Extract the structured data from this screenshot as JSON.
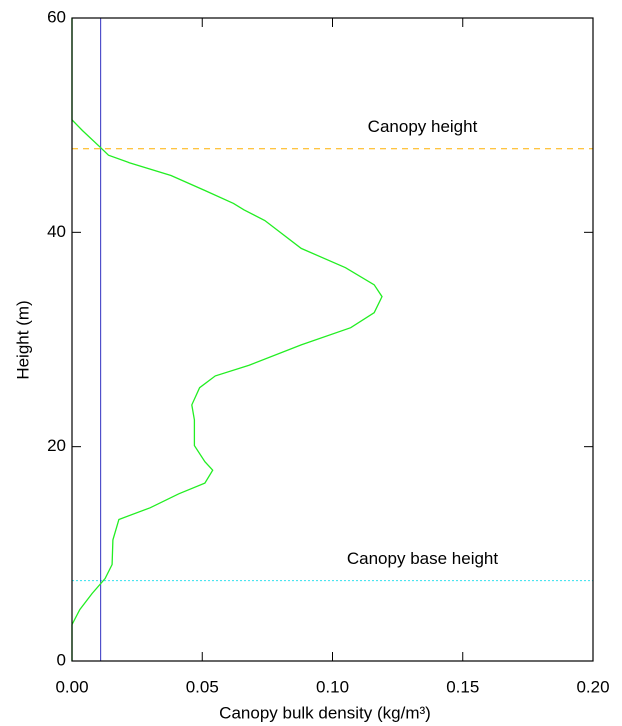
{
  "chart_data": {
    "type": "line",
    "xlabel": "Canopy bulk density (kg/m³)",
    "ylabel": "Height (m)",
    "xlim": [
      0,
      0.2
    ],
    "ylim": [
      0,
      60
    ],
    "xticks": [
      {
        "value": 0,
        "label": "0.00"
      },
      0.05,
      {
        "value": 0.1,
        "label": "0.10"
      },
      0.15,
      {
        "value": 0.2,
        "label": "0.20"
      }
    ],
    "yticks": [
      0,
      20,
      40,
      60
    ],
    "x": [
      0,
      0,
      0.003,
      0.0077,
      0.0127,
      0.0154,
      0.0157,
      0.018,
      0.03,
      0.041,
      0.051,
      0.054,
      0.051,
      0.047,
      0.047,
      0.046,
      0.049,
      0.055,
      0.068,
      0.088,
      0.107,
      0.116,
      0.119,
      0.116,
      0.105,
      0.088,
      0.074,
      0.066,
      0.062,
      0.051,
      0.038,
      0.022,
      0.014,
      0.011,
      0.004,
      0,
      0
    ],
    "series": [
      {
        "color": "#22ee22",
        "values": [
          0,
          3.4,
          4.8,
          6.3,
          7.7,
          9.0,
          11.3,
          13.2,
          14.3,
          15.6,
          16.6,
          17.8,
          18.6,
          20.1,
          22.5,
          23.9,
          25.5,
          26.6,
          27.6,
          29.5,
          31.1,
          32.5,
          34.0,
          35.1,
          36.7,
          38.5,
          41.1,
          42.1,
          42.7,
          43.9,
          45.3,
          46.5,
          47.2,
          47.9,
          49.5,
          50.5,
          60
        ]
      }
    ],
    "hlines": [
      {
        "y": 47.8,
        "label": "Canopy height",
        "color": "#ffb000",
        "dash": "6,5"
      },
      {
        "y": 7.5,
        "label": "Canopy base height",
        "color": "#33e0ee",
        "dash": "2,2"
      }
    ],
    "vlines": [
      {
        "x": 0.011,
        "color": "#3030c0"
      }
    ]
  }
}
